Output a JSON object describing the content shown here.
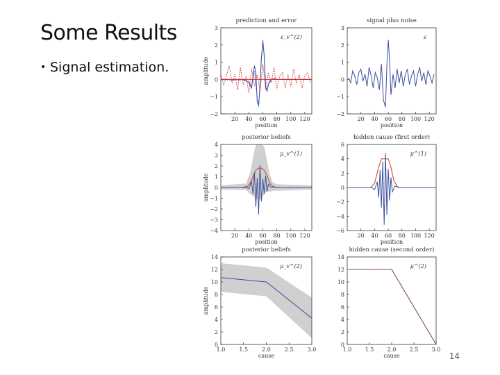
{
  "slide": {
    "title": "Some Results",
    "bullet": "Signal estimation.",
    "page_number": "14"
  },
  "colors": {
    "blue": "#3a4f9e",
    "red": "#d33030",
    "band": "#c8c8c8",
    "axis": "#333333"
  },
  "chart_data": [
    {
      "id": "pred-error",
      "type": "line",
      "title": "prediction and error",
      "annotation": "ε_v^(2)",
      "xlabel": "position",
      "ylabel": "amplitude",
      "xlim": [
        0,
        130
      ],
      "ylim": [
        -2,
        3
      ],
      "xticks": [
        20,
        40,
        60,
        80,
        100,
        120
      ],
      "yticks": [
        -2,
        -1,
        0,
        1,
        2,
        3
      ],
      "series": [
        {
          "style": "blue-solid",
          "x": [
            0,
            30,
            36,
            40,
            44,
            46,
            48,
            50,
            52,
            54,
            56,
            58,
            60,
            62,
            64,
            66,
            68,
            72,
            76,
            80,
            130
          ],
          "y": [
            0,
            0,
            -0.05,
            -0.2,
            -0.5,
            0.2,
            0.8,
            0.4,
            -1.3,
            -1.5,
            -0.4,
            1.2,
            2.2,
            1.4,
            -0.4,
            -0.7,
            -0.3,
            0,
            0.05,
            0,
            0
          ]
        },
        {
          "style": "blue-dotted",
          "x": [
            0,
            40,
            44,
            48,
            52,
            54,
            56,
            58,
            60,
            62,
            64,
            66,
            70,
            130
          ],
          "y": [
            0,
            -0.1,
            -0.4,
            0.5,
            -1.1,
            -1.6,
            -0.3,
            1.3,
            2.3,
            1.2,
            -0.6,
            -0.5,
            0,
            0
          ]
        },
        {
          "style": "red-dotted",
          "x": [
            0,
            4,
            8,
            12,
            16,
            20,
            24,
            28,
            32,
            36,
            40,
            44,
            48,
            52,
            56,
            60,
            64,
            68,
            72,
            76,
            80,
            84,
            88,
            92,
            96,
            100,
            104,
            108,
            112,
            116,
            120,
            124,
            128
          ],
          "y": [
            0.3,
            -0.3,
            0.2,
            0.8,
            -0.2,
            0.3,
            -0.6,
            0.7,
            -0.3,
            0.2,
            -0.8,
            0.6,
            -0.4,
            0.3,
            -0.7,
            0.9,
            -0.5,
            0.4,
            -0.2,
            0.7,
            -0.6,
            0.2,
            0.4,
            -0.5,
            0.3,
            -0.4,
            0.6,
            -0.2,
            0.3,
            -0.5,
            0.2,
            0.4,
            -0.2
          ]
        },
        {
          "style": "red-solid",
          "x": [
            0,
            130
          ],
          "y": [
            0,
            0
          ]
        }
      ]
    },
    {
      "id": "signal-noise",
      "type": "line",
      "title": "signal plus noise",
      "annotation": "s",
      "xlabel": "position",
      "ylabel": "",
      "xlim": [
        0,
        130
      ],
      "ylim": [
        -2,
        3
      ],
      "xticks": [
        20,
        40,
        60,
        80,
        100,
        120
      ],
      "yticks": [
        -2,
        -1,
        0,
        1,
        2,
        3
      ],
      "series": [
        {
          "style": "blue-solid",
          "x": [
            2,
            5,
            8,
            11,
            14,
            17,
            20,
            23,
            26,
            29,
            32,
            35,
            38,
            41,
            44,
            47,
            50,
            53,
            56,
            58,
            60,
            62,
            64,
            67,
            70,
            73,
            76,
            79,
            82,
            85,
            88,
            91,
            94,
            97,
            100,
            103,
            106,
            109,
            112,
            115,
            118,
            121,
            124,
            127
          ],
          "y": [
            0.1,
            -0.2,
            0.5,
            0.2,
            -0.3,
            0.4,
            0.6,
            -0.1,
            0.3,
            -0.4,
            0.7,
            0.2,
            -0.5,
            0.4,
            0.1,
            -0.6,
            0.9,
            -1.2,
            -1.6,
            0.8,
            2.3,
            1.1,
            -0.9,
            0.3,
            -0.5,
            0.6,
            -0.2,
            0.5,
            -0.4,
            0.3,
            0.6,
            -0.3,
            0.2,
            0.5,
            -0.4,
            0.3,
            0.7,
            -0.1,
            0.4,
            -0.3,
            0.5,
            0.2,
            -0.2,
            0.3
          ]
        }
      ]
    },
    {
      "id": "posterior-first",
      "type": "line",
      "title": "posterior beliefs",
      "annotation": "μ_v^(1)",
      "xlabel": "position",
      "ylabel": "amplitude",
      "xlim": [
        0,
        130
      ],
      "ylim": [
        -4,
        4
      ],
      "xticks": [
        20,
        40,
        60,
        80,
        100,
        120
      ],
      "yticks": [
        -4,
        -3,
        -2,
        -1,
        0,
        1,
        2,
        3,
        4
      ],
      "series": [
        {
          "style": "red-solid",
          "x": [
            0,
            30,
            38,
            42,
            46,
            50,
            54,
            58,
            62,
            66,
            70,
            74,
            80,
            130
          ],
          "y": [
            0,
            0,
            0.1,
            0.4,
            1,
            1.6,
            1.8,
            1.8,
            1.6,
            1.1,
            0.4,
            0.1,
            0,
            0
          ]
        },
        {
          "style": "blue-solid",
          "x": [
            0,
            36,
            40,
            44,
            46,
            48,
            50,
            52,
            54,
            56,
            58,
            60,
            62,
            64,
            66,
            68,
            72,
            76,
            80,
            130
          ],
          "y": [
            0,
            0,
            -0.1,
            0.5,
            -0.6,
            1.4,
            -1.8,
            0.9,
            -2.5,
            2.1,
            -1.3,
            0.8,
            -0.6,
            1.1,
            -0.4,
            0.3,
            0,
            0.05,
            0,
            0
          ]
        }
      ],
      "band": {
        "x": [
          0,
          36,
          42,
          46,
          50,
          54,
          58,
          62,
          66,
          70,
          74,
          80,
          130
        ],
        "half_width": [
          0.2,
          0.3,
          1.0,
          1.8,
          2.6,
          3.0,
          2.8,
          2.2,
          1.4,
          0.8,
          0.4,
          0.3,
          0.2
        ]
      }
    },
    {
      "id": "hidden-first",
      "type": "line",
      "title": "hidden cause (first order)",
      "annotation": "μ^(1)",
      "xlabel": "position",
      "ylabel": "",
      "xlim": [
        0,
        130
      ],
      "ylim": [
        -6,
        6
      ],
      "xticks": [
        20,
        40,
        60,
        80,
        100,
        120
      ],
      "yticks": [
        -6,
        -4,
        -2,
        0,
        2,
        4,
        6
      ],
      "series": [
        {
          "style": "red-solid",
          "x": [
            0,
            34,
            40,
            46,
            50,
            60,
            64,
            68,
            74,
            130
          ],
          "y": [
            0,
            0,
            0.6,
            2.8,
            4,
            4,
            2.8,
            1,
            0,
            0
          ]
        },
        {
          "style": "blue-solid",
          "x": [
            0,
            36,
            40,
            44,
            46,
            48,
            50,
            52,
            54,
            56,
            58,
            60,
            62,
            64,
            66,
            70,
            76,
            130
          ],
          "y": [
            0,
            0,
            -0.3,
            0.8,
            -1.4,
            2.4,
            -2.8,
            3.6,
            -5.2,
            4.8,
            -3.8,
            2.6,
            -1.8,
            1.4,
            -0.6,
            0.2,
            0,
            0
          ]
        }
      ]
    },
    {
      "id": "posterior-second",
      "type": "line",
      "title": "posterior beliefs",
      "annotation": "μ_v^(2)",
      "xlabel": "cause",
      "ylabel": "amplitude",
      "xlim": [
        1,
        3
      ],
      "ylim": [
        0,
        14
      ],
      "xticks": [
        1.0,
        1.5,
        2.0,
        2.5,
        3.0
      ],
      "yticks": [
        0,
        2,
        4,
        6,
        8,
        10,
        12,
        14
      ],
      "series": [
        {
          "style": "blue-solid",
          "x": [
            1.0,
            2.0,
            3.0
          ],
          "y": [
            10.7,
            10.0,
            4.2
          ]
        }
      ],
      "band": {
        "x": [
          1.0,
          2.0,
          3.0
        ],
        "upper": [
          13.0,
          12.3,
          7.5
        ],
        "lower": [
          8.4,
          7.7,
          1.0
        ]
      }
    },
    {
      "id": "hidden-second",
      "type": "line",
      "title": "hidden cause (second order)",
      "annotation": "μ^(2)",
      "xlabel": "cause",
      "ylabel": "",
      "xlim": [
        1,
        3
      ],
      "ylim": [
        0,
        14
      ],
      "xticks": [
        1.0,
        1.5,
        2.0,
        2.5,
        3.0
      ],
      "yticks": [
        0,
        2,
        4,
        6,
        8,
        10,
        12,
        14
      ],
      "series": [
        {
          "style": "blue-solid",
          "x": [
            1.0,
            2.0,
            3.0
          ],
          "y": [
            12,
            12,
            0
          ]
        },
        {
          "style": "red-dotted",
          "x": [
            1.0,
            2.0,
            3.0
          ],
          "y": [
            12,
            12,
            0
          ]
        }
      ]
    }
  ]
}
